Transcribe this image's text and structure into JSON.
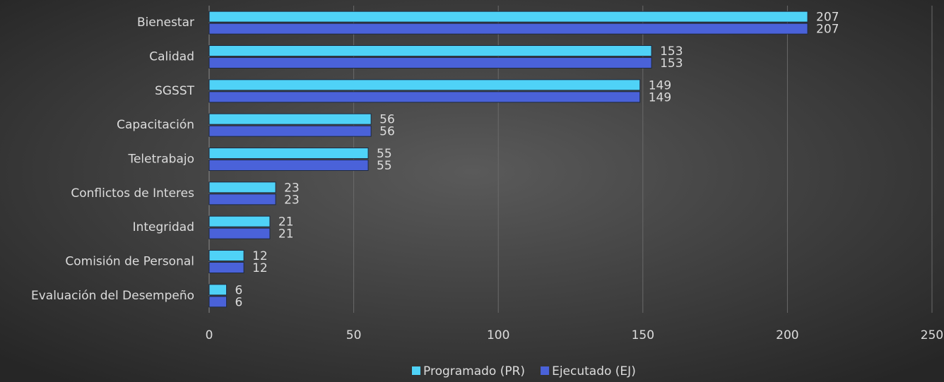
{
  "chart_data": {
    "type": "bar",
    "orientation": "horizontal",
    "categories": [
      "Bienestar",
      "Calidad",
      "SGSST",
      "Capacitación",
      "Teletrabajo",
      "Conflictos de Interes",
      "Integridad",
      "Comisión de Personal",
      "Evaluación del Desempeño"
    ],
    "series": [
      {
        "name": "Programado (PR)",
        "color": "#4fd2f7",
        "values": [
          207,
          153,
          149,
          56,
          55,
          23,
          21,
          12,
          6
        ]
      },
      {
        "name": "Ejecutado (EJ)",
        "color": "#4a62d9",
        "values": [
          207,
          153,
          149,
          56,
          55,
          23,
          21,
          12,
          6
        ]
      }
    ],
    "xlim": [
      0,
      250
    ],
    "xticks": [
      0,
      50,
      100,
      150,
      200,
      250
    ],
    "grid": true,
    "legend": "bottom"
  }
}
